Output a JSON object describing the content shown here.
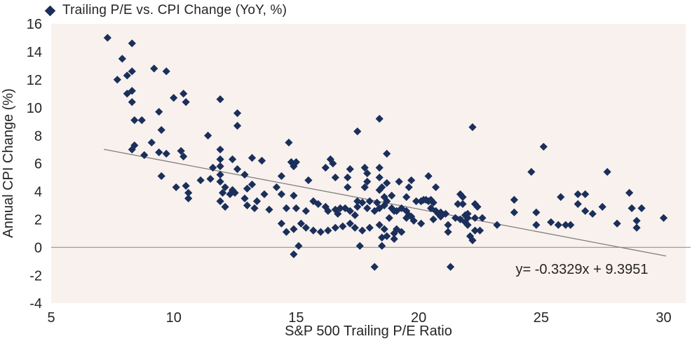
{
  "legend": {
    "label": "Trailing P/E vs. CPI Change (YoY, %)"
  },
  "colors": {
    "marker": "#1a2f5a",
    "plot_bg": "#f9f1ee",
    "line": "#858585",
    "text": "#262424"
  },
  "chart_data": {
    "type": "scatter",
    "title": "Trailing P/E vs. CPI Change (YoY, %)",
    "xlabel": "S&P 500 Trailing P/E Ratio",
    "ylabel": "Annual CPI Change (%)",
    "xlim": [
      5,
      30.9
    ],
    "ylim": [
      -4,
      16
    ],
    "xticks": [
      5,
      10,
      15,
      20,
      25,
      30
    ],
    "yticks": [
      16,
      14,
      12,
      10,
      8,
      6,
      4,
      2,
      0,
      -2,
      -4
    ],
    "grid": false,
    "legend_position": "top-left",
    "zero_line": 0,
    "trendline": {
      "label": "y= -0.3329x + 9.3951",
      "slope": -0.3329,
      "intercept": 9.3951,
      "x_start": 7.15,
      "x_end": 30.1
    },
    "points": [
      [
        7.3,
        15.0
      ],
      [
        8.3,
        14.6
      ],
      [
        7.9,
        13.5
      ],
      [
        9.2,
        12.8
      ],
      [
        9.7,
        12.6
      ],
      [
        7.7,
        12.0
      ],
      [
        8.1,
        12.3
      ],
      [
        8.3,
        12.6
      ],
      [
        8.1,
        11.0
      ],
      [
        8.3,
        11.2
      ],
      [
        8.3,
        10.4
      ],
      [
        10.0,
        10.7
      ],
      [
        10.4,
        11.0
      ],
      [
        10.5,
        10.4
      ],
      [
        9.4,
        9.7
      ],
      [
        8.4,
        9.1
      ],
      [
        8.7,
        9.1
      ],
      [
        9.5,
        8.4
      ],
      [
        11.9,
        10.6
      ],
      [
        11.4,
        8.0
      ],
      [
        12.6,
        9.6
      ],
      [
        12.6,
        8.7
      ],
      [
        8.4,
        7.3
      ],
      [
        8.3,
        7.0
      ],
      [
        8.8,
        6.6
      ],
      [
        9.1,
        7.5
      ],
      [
        9.4,
        6.8
      ],
      [
        9.7,
        6.7
      ],
      [
        10.3,
        6.9
      ],
      [
        10.4,
        6.5
      ],
      [
        11.9,
        7.0
      ],
      [
        11.9,
        6.3
      ],
      [
        12.4,
        6.3
      ],
      [
        13.2,
        6.4
      ],
      [
        13.6,
        6.2
      ],
      [
        14.7,
        7.5
      ],
      [
        17.5,
        8.3
      ],
      [
        18.4,
        9.2
      ],
      [
        22.2,
        8.6
      ],
      [
        25.1,
        7.2
      ],
      [
        14.8,
        6.1
      ],
      [
        15.0,
        6.1
      ],
      [
        16.4,
        6.3
      ],
      [
        16.5,
        6.0
      ],
      [
        18.7,
        6.7
      ],
      [
        9.5,
        5.1
      ],
      [
        10.1,
        4.3
      ],
      [
        10.5,
        4.4
      ],
      [
        10.6,
        3.9
      ],
      [
        11.1,
        4.8
      ],
      [
        11.5,
        4.9
      ],
      [
        11.6,
        5.7
      ],
      [
        11.9,
        5.8
      ],
      [
        11.9,
        5.2
      ],
      [
        11.9,
        4.7
      ],
      [
        12.1,
        4.3
      ],
      [
        12.4,
        4.1
      ],
      [
        12.5,
        3.9
      ],
      [
        12.3,
        3.8
      ],
      [
        12.9,
        5.2
      ],
      [
        13.2,
        4.5
      ],
      [
        13.0,
        4.2
      ],
      [
        11.9,
        3.3
      ],
      [
        13.0,
        3.0
      ],
      [
        13.3,
        2.8
      ],
      [
        12.6,
        5.6
      ],
      [
        10.6,
        3.5
      ],
      [
        12.0,
        3.9
      ],
      [
        12.1,
        2.9
      ],
      [
        12.9,
        3.5
      ],
      [
        14.9,
        5.8
      ],
      [
        16.2,
        5.7
      ],
      [
        17.2,
        5.6
      ],
      [
        17.8,
        5.7
      ],
      [
        18.4,
        5.7
      ],
      [
        14.4,
        5.1
      ],
      [
        15.5,
        4.8
      ],
      [
        16.6,
        5.0
      ],
      [
        17.1,
        5.0
      ],
      [
        17.9,
        5.3
      ],
      [
        17.9,
        4.7
      ],
      [
        18.4,
        5.0
      ],
      [
        18.7,
        4.6
      ],
      [
        19.2,
        4.7
      ],
      [
        19.7,
        4.8
      ],
      [
        20.4,
        5.1
      ],
      [
        20.7,
        4.3
      ],
      [
        14.2,
        4.3
      ],
      [
        13.7,
        3.8
      ],
      [
        14.4,
        3.8
      ],
      [
        14.9,
        3.7
      ],
      [
        17.1,
        4.3
      ],
      [
        17.8,
        4.3
      ],
      [
        18.5,
        4.3
      ],
      [
        18.4,
        4.1
      ],
      [
        19.5,
        3.6
      ],
      [
        19.6,
        4.3
      ],
      [
        21.7,
        3.8
      ],
      [
        21.8,
        3.6
      ],
      [
        18.9,
        3.7
      ],
      [
        18.6,
        3.6
      ],
      [
        20.2,
        3.4
      ],
      [
        20.5,
        3.4
      ],
      [
        20.1,
        3.3
      ],
      [
        20.6,
        3.2
      ],
      [
        21.6,
        3.1
      ],
      [
        21.8,
        3.1
      ],
      [
        22.3,
        3.1
      ],
      [
        13.4,
        3.3
      ],
      [
        13.9,
        2.7
      ],
      [
        14.6,
        2.8
      ],
      [
        15.0,
        2.8
      ],
      [
        15.4,
        2.6
      ],
      [
        15.7,
        3.3
      ],
      [
        15.9,
        3.1
      ],
      [
        16.2,
        2.9
      ],
      [
        16.3,
        2.6
      ],
      [
        16.6,
        2.7
      ],
      [
        16.7,
        2.4
      ],
      [
        16.8,
        2.8
      ],
      [
        17.0,
        2.8
      ],
      [
        17.2,
        2.6
      ],
      [
        17.4,
        2.3
      ],
      [
        17.5,
        3.3
      ],
      [
        17.5,
        2.9
      ],
      [
        17.7,
        3.2
      ],
      [
        17.9,
        2.8
      ],
      [
        18.0,
        3.3
      ],
      [
        18.2,
        2.6
      ],
      [
        18.3,
        3.2
      ],
      [
        18.4,
        2.8
      ],
      [
        18.6,
        3.0
      ],
      [
        18.7,
        3.3
      ],
      [
        18.9,
        2.8
      ],
      [
        19.1,
        2.6
      ],
      [
        19.3,
        2.8
      ],
      [
        19.5,
        2.6
      ],
      [
        19.6,
        2.3
      ],
      [
        19.7,
        2.2
      ],
      [
        19.9,
        3.3
      ],
      [
        20.1,
        3.3
      ],
      [
        20.3,
        3.4
      ],
      [
        20.4,
        3.3
      ],
      [
        20.5,
        2.8
      ],
      [
        20.7,
        2.6
      ],
      [
        20.9,
        2.5
      ],
      [
        21.1,
        2.4
      ],
      [
        21.5,
        2.1
      ],
      [
        21.7,
        2.0
      ],
      [
        19.0,
        2.6
      ],
      [
        18.8,
        2.1
      ],
      [
        19.5,
        2.1
      ],
      [
        19.8,
        1.9
      ],
      [
        20.1,
        1.7
      ],
      [
        20.6,
        2.0
      ],
      [
        20.8,
        2.4
      ],
      [
        20.9,
        2.2
      ],
      [
        21.2,
        1.6
      ],
      [
        21.2,
        1.1
      ],
      [
        21.9,
        2.3
      ],
      [
        22.0,
        2.1
      ],
      [
        21.9,
        1.8
      ],
      [
        22.3,
        2.1
      ],
      [
        22.3,
        1.2
      ],
      [
        22.1,
        0.8
      ],
      [
        22.2,
        0.5
      ],
      [
        14.4,
        1.7
      ],
      [
        14.6,
        1.1
      ],
      [
        14.9,
        1.3
      ],
      [
        15.2,
        1.7
      ],
      [
        15.4,
        1.4
      ],
      [
        15.7,
        1.2
      ],
      [
        16.0,
        1.1
      ],
      [
        16.3,
        1.2
      ],
      [
        16.6,
        1.4
      ],
      [
        16.9,
        1.5
      ],
      [
        17.2,
        1.7
      ],
      [
        17.4,
        1.4
      ],
      [
        17.7,
        1.2
      ],
      [
        18.0,
        1.4
      ],
      [
        18.6,
        1.3
      ],
      [
        18.7,
        0.8
      ],
      [
        19.0,
        1.0
      ],
      [
        19.3,
        1.1
      ],
      [
        18.5,
        0.7
      ],
      [
        19.1,
        1.3
      ],
      [
        19.0,
        0.6
      ],
      [
        18.4,
        1.6
      ],
      [
        15.1,
        0.1
      ],
      [
        14.9,
        -0.5
      ],
      [
        17.6,
        0.1
      ],
      [
        18.5,
        0.1
      ],
      [
        18.2,
        -1.4
      ],
      [
        21.3,
        -1.4
      ],
      [
        24.6,
        5.4
      ],
      [
        27.7,
        5.4
      ],
      [
        23.9,
        3.4
      ],
      [
        23.9,
        2.5
      ],
      [
        22.4,
        2.9
      ],
      [
        22.0,
        2.4
      ],
      [
        22.5,
        1.2
      ],
      [
        22.0,
        1.6
      ],
      [
        22.6,
        2.1
      ],
      [
        23.2,
        1.6
      ],
      [
        24.8,
        2.5
      ],
      [
        24.8,
        1.6
      ],
      [
        25.4,
        1.8
      ],
      [
        25.7,
        1.6
      ],
      [
        26.0,
        1.6
      ],
      [
        26.2,
        1.6
      ],
      [
        25.8,
        3.6
      ],
      [
        26.5,
        3.8
      ],
      [
        26.5,
        3.1
      ],
      [
        26.8,
        3.8
      ],
      [
        26.8,
        2.6
      ],
      [
        27.1,
        2.4
      ],
      [
        27.5,
        2.9
      ],
      [
        28.1,
        1.7
      ],
      [
        28.6,
        3.9
      ],
      [
        28.7,
        2.8
      ],
      [
        29.1,
        2.8
      ],
      [
        28.9,
        1.9
      ],
      [
        28.9,
        1.4
      ],
      [
        30.0,
        2.1
      ]
    ]
  }
}
